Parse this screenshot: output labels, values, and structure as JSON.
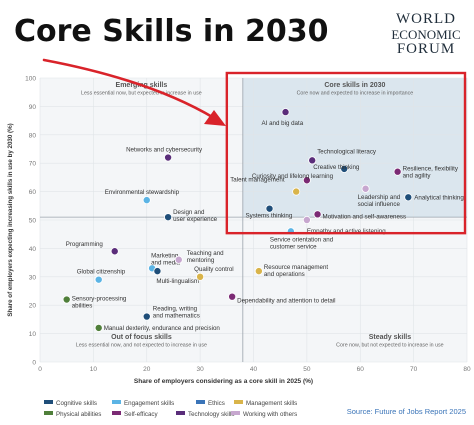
{
  "headline": "Core Skills in 2030",
  "logo": {
    "line1": "WORLD",
    "line2": "ECONOMIC",
    "line3": "FORUM"
  },
  "source": "Source: Future of Jobs Report 2025",
  "colors": {
    "Cognitive skills": "#1f4e79",
    "Engagement skills": "#5bb4e5",
    "Ethics": "#3a74b8",
    "Management skills": "#d9b44a",
    "Physical abilities": "#4f7f3a",
    "Self-efficacy": "#7b2a74",
    "Technology skills": "#5a2d7a",
    "Working with others": "#c7a7cf",
    "highlight": "#d9232a",
    "quadrant_fill": "#dbe6ee"
  },
  "chart_data": {
    "type": "scatter",
    "xlabel": "Share of employers considering as a core skill in 2025 (%)",
    "ylabel": "Share of employers expecting increasing skills in use by 2030 (%)",
    "xlim": [
      0,
      80
    ],
    "ylim": [
      0,
      100
    ],
    "xticks": [
      0,
      10,
      20,
      30,
      40,
      50,
      60,
      70,
      80
    ],
    "yticks": [
      0,
      10,
      20,
      30,
      40,
      50,
      60,
      70,
      80,
      90,
      100
    ],
    "divider": {
      "x": 38,
      "y": 51
    },
    "quadrants": [
      {
        "title": "Emerging skills",
        "subtitle": "Less essential now, but expected to increase in use"
      },
      {
        "title": "Core skills in 2030",
        "subtitle": "Core now and expected to increase in importance"
      },
      {
        "title": "Out of focus skills",
        "subtitle": "Less essential now, and not expected to increase in use"
      },
      {
        "title": "Steady skills",
        "subtitle": "Core now, but not expected to increase in use"
      }
    ],
    "legend": [
      "Cognitive skills",
      "Engagement skills",
      "Ethics",
      "Management skills",
      "Physical abilities",
      "Self-efficacy",
      "Technology skills",
      "Working with others"
    ],
    "points": [
      {
        "label": "AI and big data",
        "x": 46,
        "y": 88,
        "category": "Technology skills"
      },
      {
        "label": "Technological literacy",
        "x": 51,
        "y": 71,
        "category": "Technology skills"
      },
      {
        "label": "Creative thinking",
        "x": 57,
        "y": 68,
        "category": "Cognitive skills"
      },
      {
        "label": "Resilience, flexibility and agility",
        "x": 67,
        "y": 67,
        "category": "Self-efficacy"
      },
      {
        "label": "Curiosity and lifelong learning",
        "x": 50,
        "y": 64,
        "category": "Self-efficacy"
      },
      {
        "label": "Talent management",
        "x": 48,
        "y": 60,
        "category": "Management skills"
      },
      {
        "label": "Leadership and social influence",
        "x": 61,
        "y": 61,
        "category": "Working with others"
      },
      {
        "label": "Analytical thinking",
        "x": 69,
        "y": 58,
        "category": "Cognitive skills"
      },
      {
        "label": "Systems thinking",
        "x": 43,
        "y": 54,
        "category": "Cognitive skills"
      },
      {
        "label": "Motivation and self-awareness",
        "x": 52,
        "y": 52,
        "category": "Self-efficacy"
      },
      {
        "label": "Empathy and active listening",
        "x": 50,
        "y": 50,
        "category": "Working with others"
      },
      {
        "label": "Service orientation and customer service",
        "x": 47,
        "y": 46,
        "category": "Engagement skills"
      },
      {
        "label": "Networks and cybersecurity",
        "x": 24,
        "y": 72,
        "category": "Technology skills"
      },
      {
        "label": "Environmental stewardship",
        "x": 20,
        "y": 57,
        "category": "Engagement skills"
      },
      {
        "label": "Design and user experience",
        "x": 24,
        "y": 51,
        "category": "Cognitive skills"
      },
      {
        "label": "Programming",
        "x": 14,
        "y": 39,
        "category": "Technology skills"
      },
      {
        "label": "Marketing and media",
        "x": 21,
        "y": 33,
        "category": "Engagement skills"
      },
      {
        "label": "Teaching and mentoring",
        "x": 26,
        "y": 36,
        "category": "Working with others"
      },
      {
        "label": "Global citizenship",
        "x": 11,
        "y": 29,
        "category": "Engagement skills"
      },
      {
        "label": "Multi-lingualism",
        "x": 22,
        "y": 32,
        "category": "Cognitive skills"
      },
      {
        "label": "Quality control",
        "x": 30,
        "y": 30,
        "category": "Management skills"
      },
      {
        "label": "Resource management and operations",
        "x": 41,
        "y": 32,
        "category": "Management skills"
      },
      {
        "label": "Sensory-processing abilities",
        "x": 5,
        "y": 22,
        "category": "Physical abilities"
      },
      {
        "label": "Dependability and attention to detail",
        "x": 36,
        "y": 23,
        "category": "Self-efficacy"
      },
      {
        "label": "Reading, writing and mathematics",
        "x": 20,
        "y": 16,
        "category": "Cognitive skills"
      },
      {
        "label": "Manual dexterity, endurance and precision",
        "x": 11,
        "y": 12,
        "category": "Physical abilities"
      }
    ]
  }
}
